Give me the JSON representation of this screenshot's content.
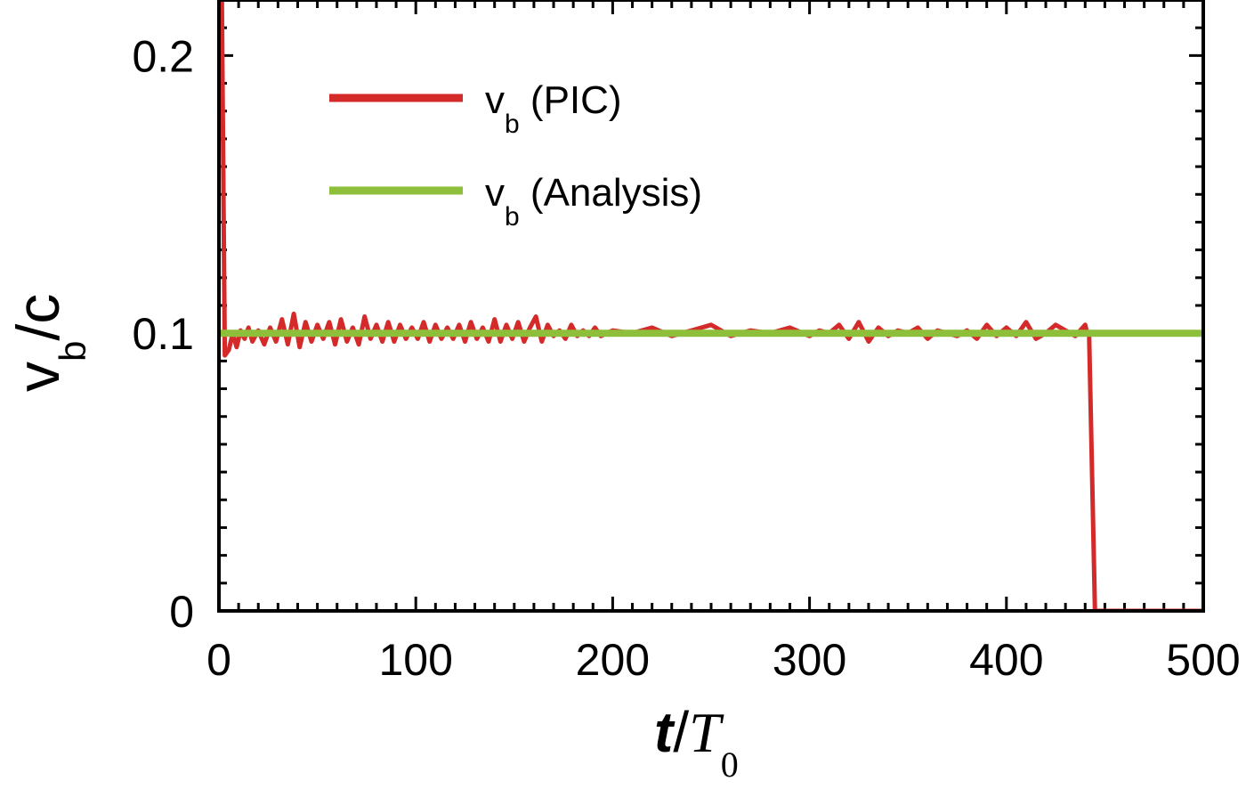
{
  "chart_data": {
    "type": "line",
    "xlim": [
      0,
      500
    ],
    "ylim": [
      0,
      0.22
    ],
    "x_ticks": [
      0,
      100,
      200,
      300,
      400,
      500
    ],
    "x_tick_labels": [
      "0",
      "100",
      "200",
      "300",
      "400",
      "500"
    ],
    "y_ticks": [
      0,
      0.1,
      0.2
    ],
    "y_tick_labels": [
      "0",
      "0.1",
      "0.2"
    ],
    "xlabel": {
      "main": "t",
      "sep": "/",
      "var": "T",
      "sub": "0"
    },
    "ylabel": {
      "main": "v",
      "sub": "b",
      "rest": "/c"
    },
    "legend_position": "top-left",
    "series": [
      {
        "name_main": "v",
        "name_sub": "b",
        "name_rest": " (PIC)",
        "color": "#d42a2a",
        "x": [
          0,
          1.5,
          3,
          5,
          7,
          9,
          11,
          13,
          15,
          17,
          20,
          23,
          26,
          29,
          32,
          35,
          38,
          41,
          44,
          47,
          50,
          53,
          56,
          59,
          62,
          65,
          68,
          71,
          74,
          77,
          80,
          83,
          86,
          89,
          92,
          95,
          98,
          101,
          104,
          107,
          110,
          113,
          116,
          119,
          122,
          125,
          128,
          131,
          134,
          137,
          140,
          143,
          146,
          149,
          152,
          155,
          158,
          161,
          164,
          167,
          170,
          173,
          176,
          179,
          182,
          185,
          188,
          191,
          194,
          197,
          200,
          210,
          220,
          230,
          240,
          250,
          260,
          270,
          280,
          290,
          300,
          305,
          310,
          315,
          320,
          325,
          330,
          335,
          340,
          345,
          350,
          355,
          360,
          365,
          370,
          375,
          380,
          385,
          390,
          395,
          400,
          405,
          410,
          415,
          420,
          425,
          435,
          440,
          441,
          442,
          445,
          450,
          460,
          470,
          480,
          490,
          500
        ],
        "y": [
          0.22,
          0.22,
          0.092,
          0.094,
          0.1,
          0.095,
          0.101,
          0.098,
          0.102,
          0.097,
          0.101,
          0.096,
          0.102,
          0.097,
          0.105,
          0.096,
          0.107,
          0.095,
          0.104,
          0.097,
          0.103,
          0.098,
          0.104,
          0.096,
          0.105,
          0.097,
          0.102,
          0.096,
          0.106,
          0.098,
          0.103,
          0.097,
          0.104,
          0.097,
          0.103,
          0.098,
          0.102,
          0.098,
          0.104,
          0.097,
          0.103,
          0.098,
          0.102,
          0.098,
          0.103,
          0.097,
          0.104,
          0.098,
          0.102,
          0.097,
          0.105,
          0.097,
          0.103,
          0.098,
          0.104,
          0.097,
          0.102,
          0.106,
          0.097,
          0.103,
          0.099,
          0.101,
          0.098,
          0.103,
          0.099,
          0.101,
          0.099,
          0.102,
          0.099,
          0.1,
          0.101,
          0.1,
          0.102,
          0.099,
          0.101,
          0.103,
          0.099,
          0.101,
          0.1,
          0.102,
          0.099,
          0.101,
          0.1,
          0.103,
          0.098,
          0.104,
          0.097,
          0.102,
          0.099,
          0.101,
          0.1,
          0.102,
          0.098,
          0.101,
          0.1,
          0.099,
          0.101,
          0.098,
          0.103,
          0.099,
          0.102,
          0.099,
          0.104,
          0.098,
          0.1,
          0.103,
          0.099,
          0.103,
          0.1,
          0.1,
          0.0,
          0.0,
          0.0,
          0.0,
          0.0,
          0.0,
          0.0
        ]
      },
      {
        "name_main": "v",
        "name_sub": "b",
        "name_rest": " (Analysis)",
        "color": "#8dbf3a",
        "x": [
          0,
          500
        ],
        "y": [
          0.1,
          0.1
        ]
      }
    ]
  }
}
